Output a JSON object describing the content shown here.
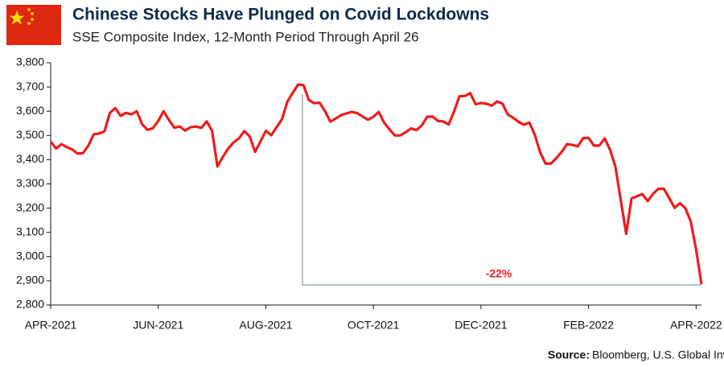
{
  "chart_data": {
    "type": "line",
    "title": "Chinese Stocks Have Plunged on Covid Lockdowns",
    "subtitle": "SSE Composite Index, 12-Month Period Through April 26",
    "annotation": "-22%",
    "source_label": "Source:",
    "source": "Bloomberg, U.S. Global Investors",
    "categories": [
      "APR-2021",
      null,
      null,
      null,
      null,
      null,
      null,
      null,
      null,
      null,
      null,
      null,
      null,
      null,
      null,
      null,
      null,
      null,
      null,
      null,
      "JUN-2021",
      null,
      null,
      null,
      null,
      null,
      null,
      null,
      null,
      null,
      null,
      null,
      null,
      null,
      null,
      null,
      null,
      null,
      null,
      null,
      "AUG-2021",
      null,
      null,
      null,
      null,
      null,
      null,
      null,
      null,
      null,
      null,
      null,
      null,
      null,
      null,
      null,
      null,
      null,
      null,
      null,
      "OCT-2021",
      null,
      null,
      null,
      null,
      null,
      null,
      null,
      null,
      null,
      null,
      null,
      null,
      null,
      null,
      null,
      null,
      null,
      null,
      null,
      "DEC-2021",
      null,
      null,
      null,
      null,
      null,
      null,
      null,
      null,
      null,
      null,
      null,
      null,
      null,
      null,
      null,
      null,
      null,
      null,
      null,
      "FEB-2022",
      null,
      null,
      null,
      null,
      null,
      null,
      null,
      null,
      null,
      null,
      null,
      null,
      null,
      null,
      null,
      null,
      null,
      null,
      null,
      "APR-2022",
      null
    ],
    "series": [
      {
        "name": "SSE Composite Index",
        "color": "#ee1c1c",
        "values": [
          3475,
          3446,
          3464,
          3452,
          3442,
          3425,
          3427,
          3458,
          3505,
          3508,
          3517,
          3593,
          3613,
          3581,
          3593,
          3587,
          3600,
          3546,
          3523,
          3530,
          3560,
          3600,
          3563,
          3532,
          3537,
          3520,
          3534,
          3537,
          3531,
          3558,
          3520,
          3372,
          3411,
          3446,
          3471,
          3488,
          3518,
          3496,
          3432,
          3475,
          3519,
          3501,
          3534,
          3567,
          3639,
          3676,
          3710,
          3708,
          3646,
          3633,
          3635,
          3600,
          3557,
          3570,
          3584,
          3591,
          3597,
          3592,
          3578,
          3565,
          3577,
          3597,
          3553,
          3525,
          3500,
          3500,
          3513,
          3529,
          3522,
          3541,
          3577,
          3578,
          3560,
          3558,
          3545,
          3599,
          3662,
          3663,
          3675,
          3629,
          3634,
          3631,
          3623,
          3640,
          3631,
          3586,
          3573,
          3556,
          3544,
          3553,
          3503,
          3431,
          3384,
          3384,
          3406,
          3432,
          3464,
          3461,
          3455,
          3489,
          3490,
          3458,
          3458,
          3488,
          3441,
          3371,
          3232,
          3094,
          3240,
          3249,
          3258,
          3229,
          3259,
          3280,
          3280,
          3242,
          3201,
          3220,
          3200,
          3145,
          3030,
          2886
        ]
      }
    ],
    "ylim": [
      2800,
      3800
    ],
    "yticks": [
      {
        "value": 2800,
        "label": "2,800"
      },
      {
        "value": 2900,
        "label": "2,900"
      },
      {
        "value": 3000,
        "label": "3,000"
      },
      {
        "value": 3100,
        "label": "3,100"
      },
      {
        "value": 3200,
        "label": "3,200"
      },
      {
        "value": 3300,
        "label": "3,300"
      },
      {
        "value": 3400,
        "label": "3,400"
      },
      {
        "value": 3500,
        "label": "3,500"
      },
      {
        "value": 3600,
        "label": "3,600"
      },
      {
        "value": 3700,
        "label": "3,700"
      },
      {
        "value": 3800,
        "label": "3,800"
      }
    ],
    "grid": false
  }
}
